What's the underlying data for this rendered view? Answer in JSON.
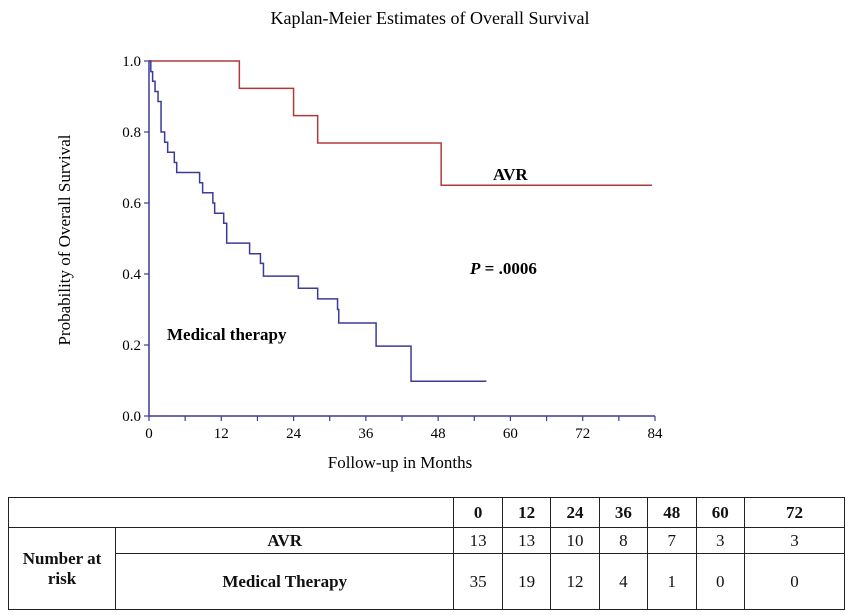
{
  "chart_data": {
    "type": "line",
    "step": true,
    "title": "Kaplan-Meier Estimates of Overall Survival",
    "xlabel": "Follow-up in Months",
    "ylabel": "Probability of Overall Survival",
    "xlim": [
      0,
      84
    ],
    "ylim": [
      0,
      1
    ],
    "xticks": [
      0,
      12,
      24,
      36,
      48,
      60,
      72,
      84
    ],
    "yticks": [
      "0.0",
      "0.2",
      "0.4",
      "0.6",
      "0.8",
      "1.0"
    ],
    "grid": false,
    "series": [
      {
        "name": "AVR",
        "color": "#b03a3a",
        "points": [
          [
            0,
            1.0
          ],
          [
            15,
            0.923
          ],
          [
            24,
            0.846
          ],
          [
            28,
            0.769
          ],
          [
            48.5,
            0.65
          ],
          [
            83.5,
            0.65
          ]
        ]
      },
      {
        "name": "Medical therapy",
        "color": "#3b3b9a",
        "points": [
          [
            0,
            1.0
          ],
          [
            0.3,
            0.97
          ],
          [
            0.6,
            0.943
          ],
          [
            1,
            0.914
          ],
          [
            1.5,
            0.886
          ],
          [
            2,
            0.8
          ],
          [
            2.6,
            0.771
          ],
          [
            3.1,
            0.743
          ],
          [
            4.2,
            0.714
          ],
          [
            4.6,
            0.686
          ],
          [
            8.4,
            0.657
          ],
          [
            8.9,
            0.629
          ],
          [
            10.6,
            0.6
          ],
          [
            10.9,
            0.571
          ],
          [
            12.4,
            0.543
          ],
          [
            12.9,
            0.487
          ],
          [
            16.7,
            0.457
          ],
          [
            18.5,
            0.43
          ],
          [
            19,
            0.394
          ],
          [
            24.8,
            0.36
          ],
          [
            28,
            0.33
          ],
          [
            31.3,
            0.3
          ],
          [
            31.5,
            0.262
          ],
          [
            37.7,
            0.197
          ],
          [
            43.5,
            0.098
          ],
          [
            56,
            0.098
          ]
        ]
      }
    ],
    "annotations": {
      "avr": "AVR",
      "medical": "Medical therapy",
      "p_label": "P",
      "p_value": " = .0006"
    }
  },
  "risk_table": {
    "times": [
      "0",
      "12",
      "24",
      "36",
      "48",
      "60",
      "72"
    ],
    "row_header": "Number at risk",
    "rows": [
      {
        "label": "AVR",
        "values": [
          "13",
          "13",
          "10",
          "8",
          "7",
          "3",
          "3"
        ]
      },
      {
        "label": "Medical Therapy",
        "values": [
          "35",
          "19",
          "12",
          "4",
          "1",
          "0",
          "0"
        ]
      }
    ]
  }
}
